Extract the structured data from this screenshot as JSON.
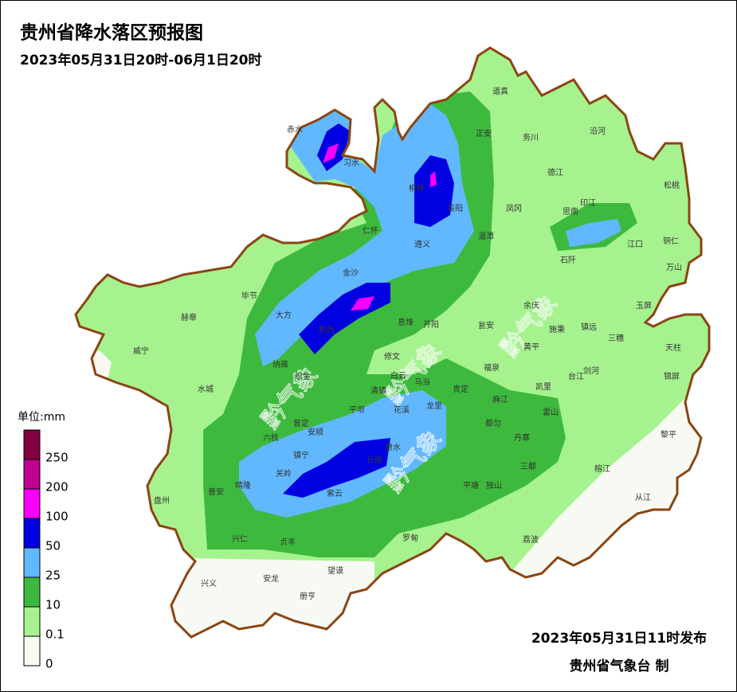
{
  "header": {
    "title": "贵州省降水落区预报图",
    "subtitle": "2023年05月31日20时-06月1日20时"
  },
  "legend": {
    "unit": "单位:mm",
    "thresholds": [
      250,
      200,
      100,
      50,
      25,
      10,
      0.1,
      0
    ],
    "colors": [
      "#800040",
      "#c0008e",
      "#fa00fa",
      "#0000e1",
      "#61b8ff",
      "#3dba3d",
      "#a6f28f",
      "#f7faf2"
    ]
  },
  "watermark": "黔气象",
  "counties": [
    "赤水",
    "习水",
    "道真",
    "务川",
    "沿河",
    "正安",
    "桐梓",
    "绥阳",
    "德江",
    "松桃",
    "印江",
    "思南",
    "凤冈",
    "仁怀",
    "湄潭",
    "遵义",
    "江口",
    "铜仁",
    "石阡",
    "万山",
    "金沙",
    "毕节",
    "大方",
    "余庆",
    "玉屏",
    "赫章",
    "黔西",
    "息烽",
    "开阳",
    "瓮安",
    "施秉",
    "镇远",
    "三穗",
    "威宁",
    "黄平",
    "天柱",
    "修文",
    "纳雍",
    "织金",
    "福泉",
    "台江",
    "剑河",
    "锦屏",
    "清镇",
    "白云",
    "乌当",
    "贵定",
    "凯里",
    "水城",
    "麻江",
    "雷山",
    "平坝",
    "花溪",
    "龙里",
    "普定",
    "都匀",
    "黎平",
    "六枝",
    "安顺",
    "丹寨",
    "惠水",
    "镇宁",
    "长顺",
    "三都",
    "关岭",
    "榕江",
    "平塘",
    "独山",
    "晴隆",
    "紫云",
    "普安",
    "盘州",
    "从江",
    "罗甸",
    "兴仁",
    "贞丰",
    "荔波",
    "望谟",
    "兴义",
    "安龙",
    "册亨"
  ],
  "footer": {
    "issued": "2023年05月31日11时发布",
    "agency": "贵州省气象台 制"
  }
}
